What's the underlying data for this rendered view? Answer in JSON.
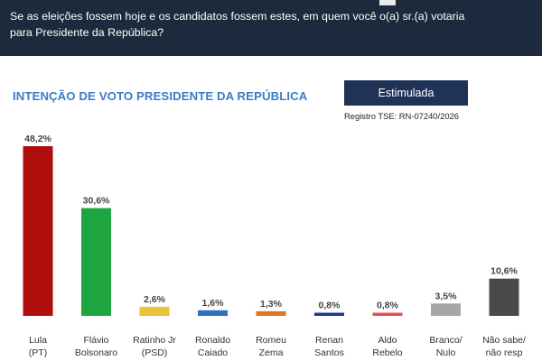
{
  "header": {
    "question_line1": "Se as eleições fossem hoje e os candidatos fossem estes, em quem você o(a) sr.(a) votaria",
    "question_line2": "para Presidente da República?"
  },
  "subtitle": "INTENÇÃO DE VOTO PRESIDENTE DA REPÚBLICA",
  "badge": "Estimulada",
  "registro": "Registro TSE: RN-07240/2026",
  "chart_data": {
    "type": "bar",
    "title": "INTENÇÃO DE VOTO PRESIDENTE DA REPÚBLICA",
    "xlabel": "",
    "ylabel": "",
    "ylim": [
      0,
      50
    ],
    "grid": false,
    "legend": "none",
    "categories": [
      [
        "Lula",
        "(PT)"
      ],
      [
        "Flávio",
        "Bolsonaro"
      ],
      [
        "Ratinho Jr",
        "(PSD)"
      ],
      [
        "Ronaldo",
        "Caiado"
      ],
      [
        "Romeu",
        "Zema"
      ],
      [
        "Renan",
        "Santos"
      ],
      [
        "Aldo",
        "Rebelo"
      ],
      [
        "Branco/",
        "Nulo"
      ],
      [
        "Não sabe/",
        "não resp"
      ]
    ],
    "values": [
      48.2,
      30.6,
      2.6,
      1.6,
      1.3,
      0.8,
      0.8,
      3.5,
      10.6
    ],
    "value_labels": [
      "48,2%",
      "30,6%",
      "2,6%",
      "1,6%",
      "1,3%",
      "0,8%",
      "0,8%",
      "3,5%",
      "10,6%"
    ],
    "colors": [
      "#b00d0d",
      "#1fa53f",
      "#e9c33a",
      "#2a72c0",
      "#de7623",
      "#1a3a8a",
      "#e2505a",
      "#a6a6a6",
      "#4a4a4a"
    ]
  }
}
